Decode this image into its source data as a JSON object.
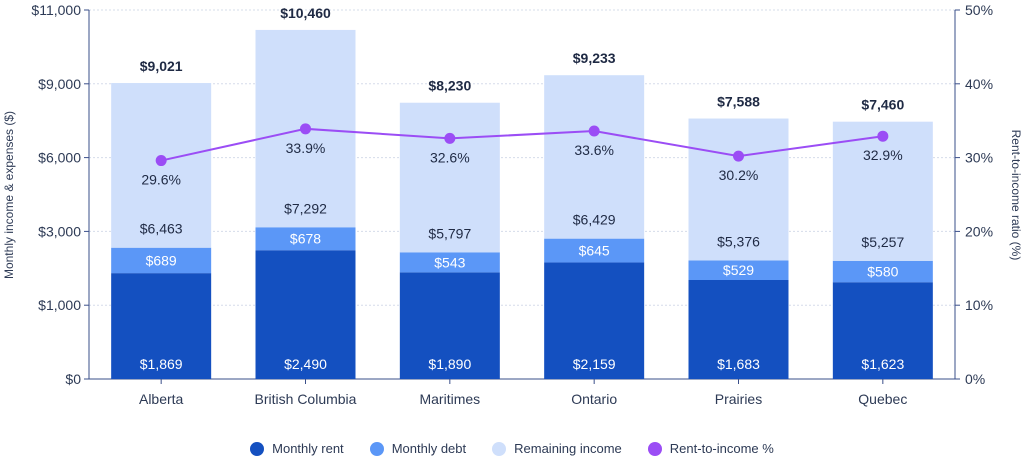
{
  "chart_data": {
    "type": "bar",
    "stacked": true,
    "categories": [
      "Alberta",
      "British Columbia",
      "Maritimes",
      "Ontario",
      "Prairies",
      "Quebec"
    ],
    "series": [
      {
        "name": "Monthly rent",
        "values": [
          1869,
          2490,
          1890,
          2159,
          1683,
          1623
        ],
        "color": "#1450c0"
      },
      {
        "name": "Monthly debt",
        "values": [
          689,
          678,
          543,
          645,
          529,
          580
        ],
        "color": "#5b97f7"
      },
      {
        "name": "Remaining income",
        "values": [
          6463,
          7292,
          5797,
          6429,
          5376,
          5257
        ],
        "color": "#cfdffb"
      }
    ],
    "totals": [
      "$9,021",
      "$10,460",
      "$8,230",
      "$9,233",
      "$7,588",
      "$7,460"
    ],
    "line_series": {
      "name": "Rent-to-income %",
      "values": [
        29.6,
        33.9,
        32.6,
        33.6,
        30.2,
        32.9
      ],
      "color": "#9b4df5",
      "axis": "right"
    },
    "ylabel": "Monthly income & expenses ($)",
    "y2label": "Rent-to-income ratio (%)",
    "yticks": [
      0,
      1000,
      3000,
      6000,
      9000,
      11000
    ],
    "ytick_labels": [
      "$0",
      "$1,000",
      "$3,000",
      "$6,000",
      "$9,000",
      "$11,000"
    ],
    "y2ticks": [
      0,
      10,
      20,
      30,
      40,
      50
    ],
    "y2tick_labels": [
      "0%",
      "10%",
      "20%",
      "30%",
      "40%",
      "50%"
    ],
    "ylim": [
      0,
      11000
    ],
    "y2lim": [
      0,
      50
    ],
    "grid": true,
    "legend": "bottom"
  }
}
